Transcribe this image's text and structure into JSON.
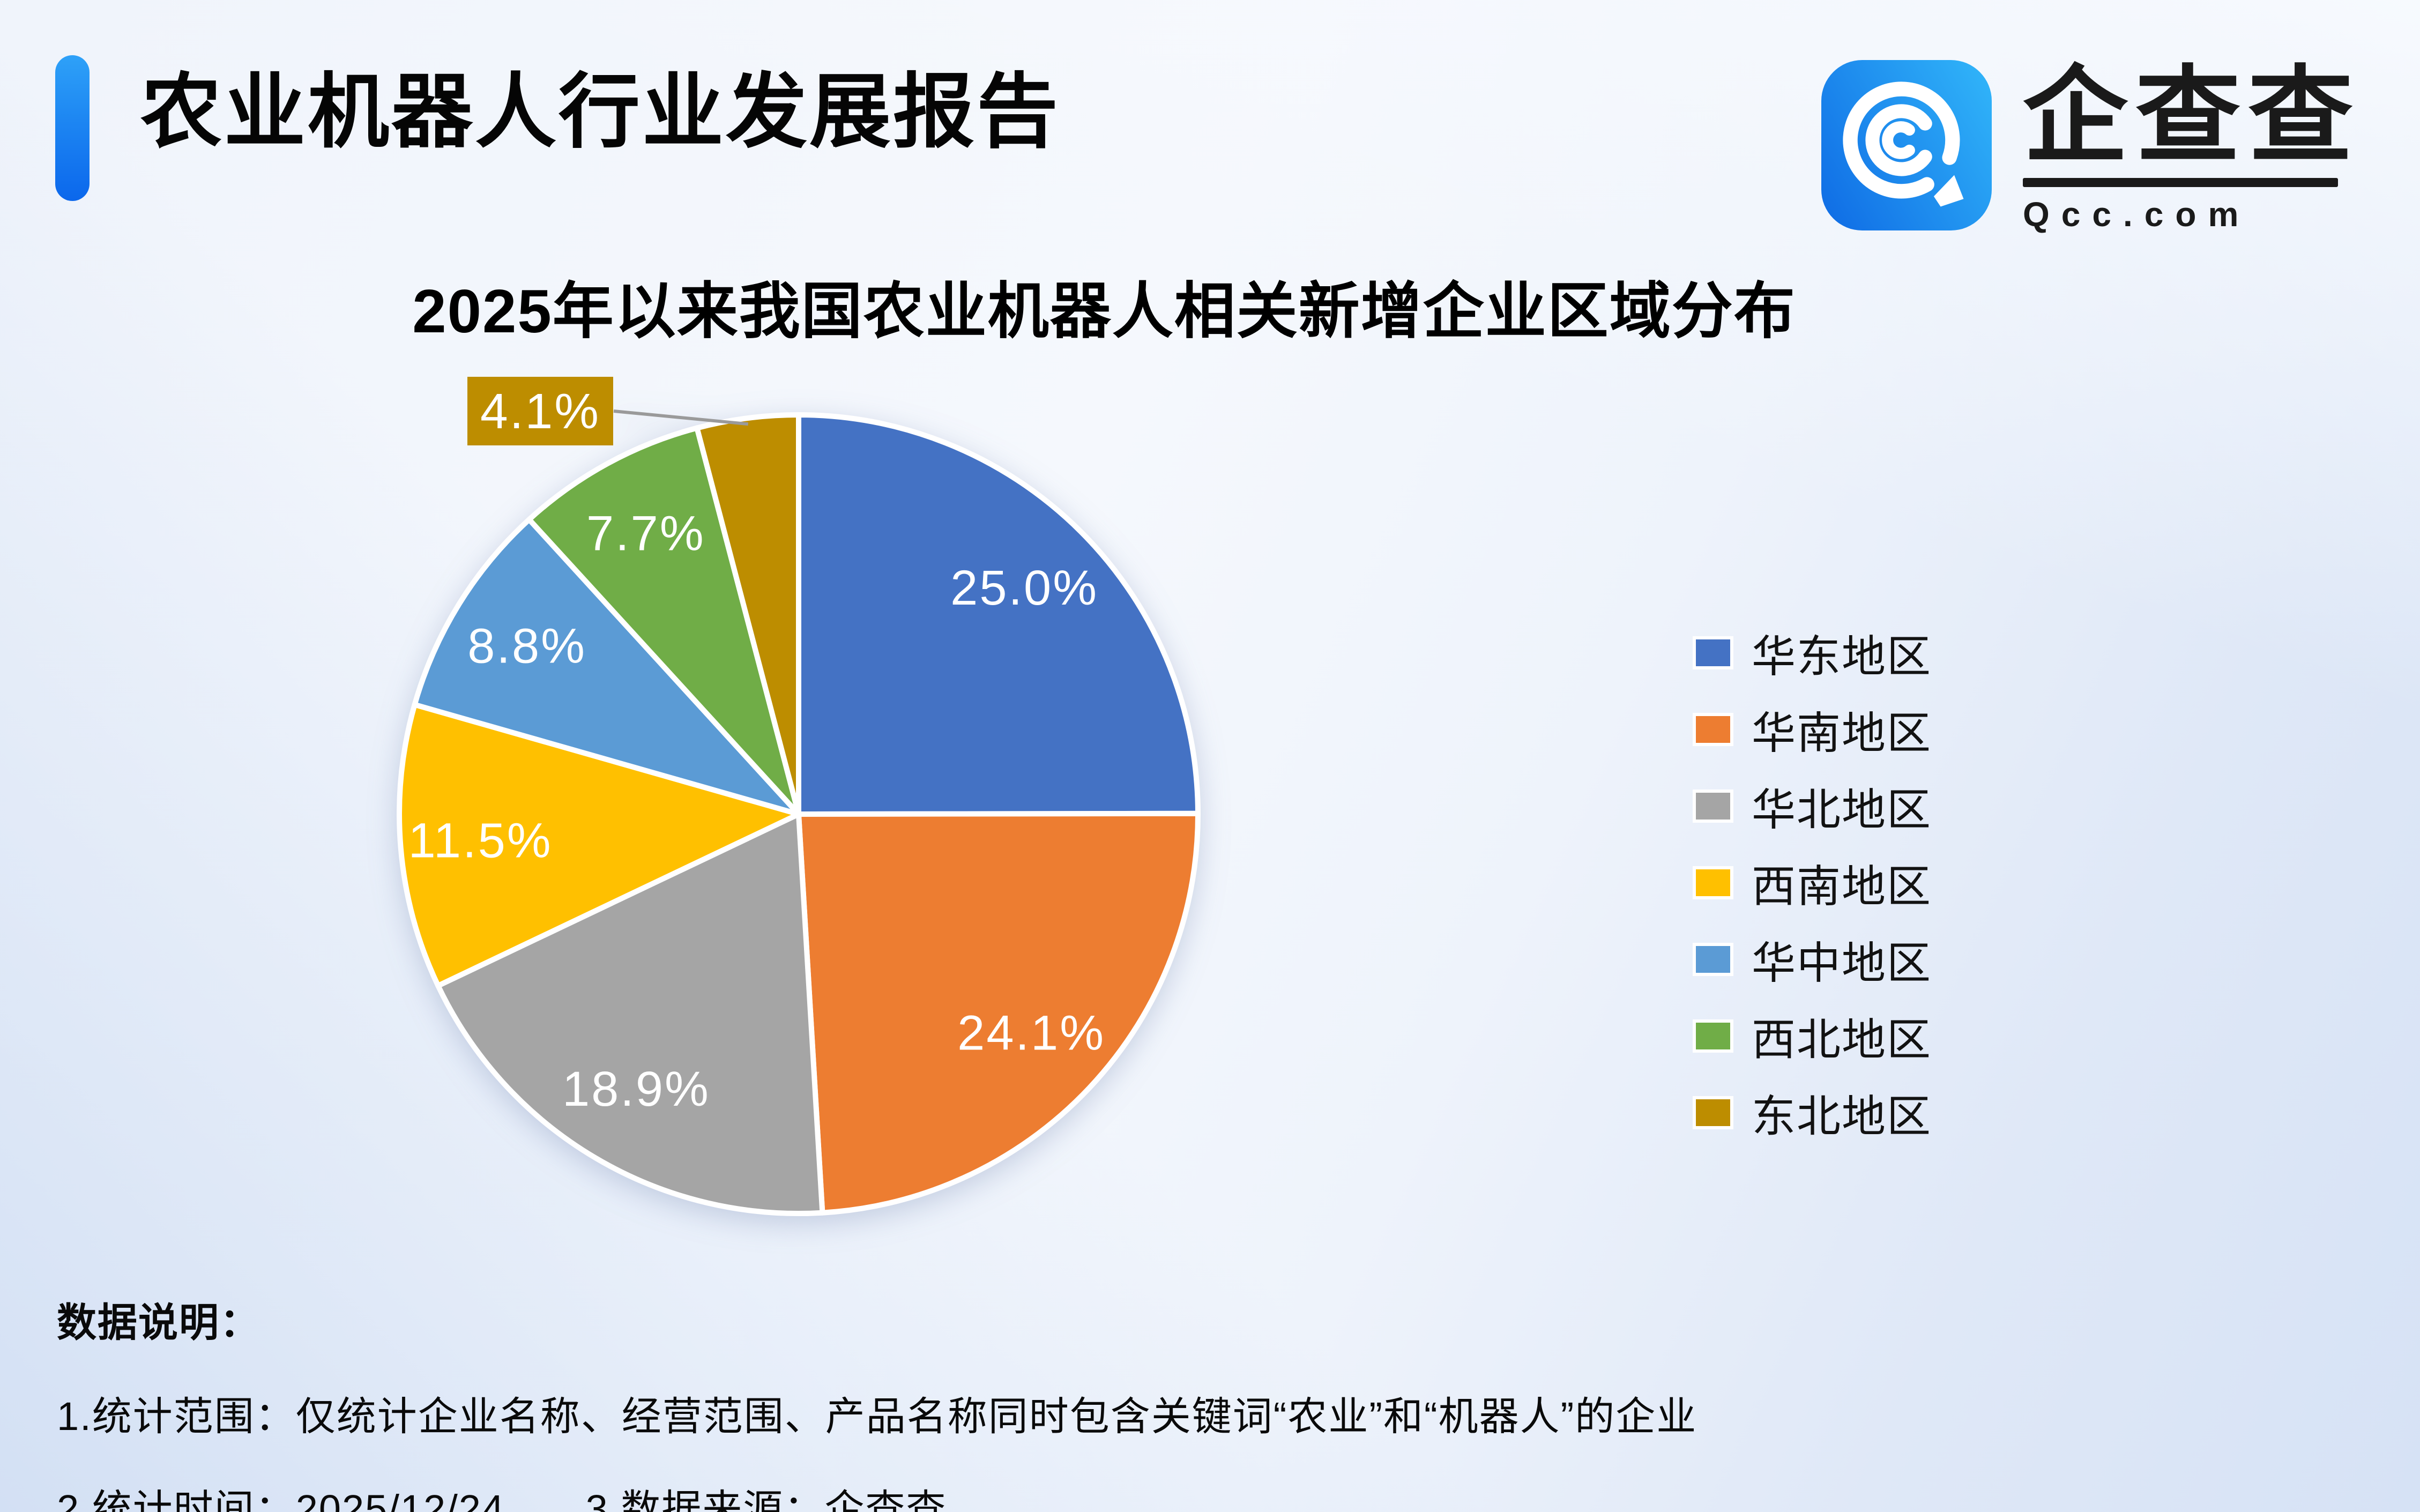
{
  "page": {
    "title": "农业机器人行业发展报告"
  },
  "logo": {
    "brand": "企查查",
    "domain": "Qcc.com",
    "icon_gradient_start": "#1170e6",
    "icon_gradient_end": "#2fb1f8"
  },
  "chart_data": {
    "type": "pie",
    "title": "2025年以来我国农业机器人相关新增企业区域分布",
    "start_angle": "12-oclock-clockwise",
    "legend_position": "right",
    "label_style": "white-percent-inside",
    "callout_slice": "东北地区",
    "series": [
      {
        "label": "华东地区",
        "value": 25.0,
        "display": "25.0%",
        "color": "#4472C4"
      },
      {
        "label": "华南地区",
        "value": 24.1,
        "display": "24.1%",
        "color": "#ED7D31"
      },
      {
        "label": "华北地区",
        "value": 18.9,
        "display": "18.9%",
        "color": "#A5A5A5"
      },
      {
        "label": "西南地区",
        "value": 11.5,
        "display": "11.5%",
        "color": "#FFC000"
      },
      {
        "label": "华中地区",
        "value": 8.8,
        "display": "8.8%",
        "color": "#5B9BD5"
      },
      {
        "label": "西北地区",
        "value": 7.7,
        "display": "7.7%",
        "color": "#70AD47"
      },
      {
        "label": "东北地区",
        "value": 4.1,
        "display": "4.1%",
        "color": "#BD8D00"
      }
    ],
    "leader_line_color": "#9a9a9a",
    "slice_border_color": "#ffffff"
  },
  "notes": {
    "heading": "数据说明：",
    "line1": "1.统计范围：仅统计企业名称、经营范围、产品名称同时包含关键词“农业”和“机器人”的企业",
    "line2a": "2.统计时间：2025/12/24",
    "line2b": "3.数据来源：企查查"
  }
}
